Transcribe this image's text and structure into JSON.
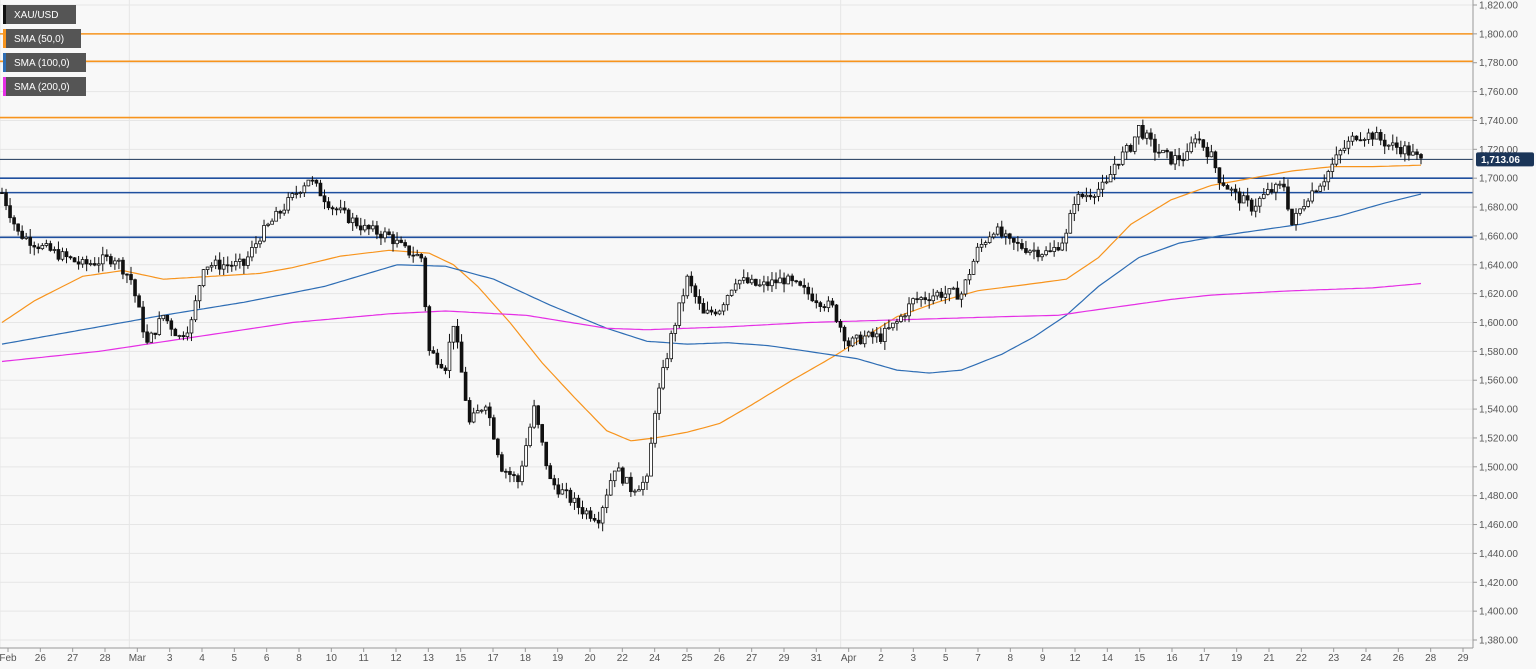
{
  "legend": [
    {
      "label": "XAU/USD",
      "color": "#111111"
    },
    {
      "label": "SMA (50,0)",
      "color": "#f7941d"
    },
    {
      "label": "SMA (100,0)",
      "color": "#2e6db4"
    },
    {
      "label": "SMA (200,0)",
      "color": "#e52fe5"
    }
  ],
  "price_tag": {
    "label": "1,713.06",
    "value": 1713.06,
    "color": "#1b3558"
  },
  "colors": {
    "background": "#f8f8f8",
    "grid": "#e6e6e6",
    "up_candle": "#ffffff",
    "down_candle": "#111111",
    "candle_outline": "#111111",
    "legend_box": "#555555",
    "resistance": "#f7941d",
    "support": "#1f4f9e",
    "current_price_line": "#1b3558"
  },
  "chart_data": {
    "type": "candlestick",
    "title": "",
    "xlabel": "",
    "ylabel": "",
    "ylim": [
      1370,
      1830
    ],
    "y_ticks": [
      {
        "value": 1820,
        "label": "1,820.00"
      },
      {
        "value": 1800,
        "label": "1,800.00"
      },
      {
        "value": 1780,
        "label": "1,780.00"
      },
      {
        "value": 1760,
        "label": "1,760.00"
      },
      {
        "value": 1740,
        "label": "1,740.00"
      },
      {
        "value": 1720,
        "label": "1,720.00"
      },
      {
        "value": 1700,
        "label": "1,700.00"
      },
      {
        "value": 1680,
        "label": "1,680.00"
      },
      {
        "value": 1660,
        "label": "1,660.00"
      },
      {
        "value": 1640,
        "label": "1,640.00"
      },
      {
        "value": 1620,
        "label": "1,620.00"
      },
      {
        "value": 1600,
        "label": "1,600.00"
      },
      {
        "value": 1580,
        "label": "1,580.00"
      },
      {
        "value": 1560,
        "label": "1,560.00"
      },
      {
        "value": 1540,
        "label": "1,540.00"
      },
      {
        "value": 1520,
        "label": "1,520.00"
      },
      {
        "value": 1500,
        "label": "1,500.00"
      },
      {
        "value": 1480,
        "label": "1,480.00"
      },
      {
        "value": 1460,
        "label": "1,460.00"
      },
      {
        "value": 1440,
        "label": "1,440.00"
      },
      {
        "value": 1420,
        "label": "1,420.00"
      },
      {
        "value": 1400,
        "label": "1,400.00"
      },
      {
        "value": 1380,
        "label": "1,380.00"
      }
    ],
    "x_ticks": [
      "Feb",
      "26",
      "27",
      "28",
      "Mar",
      "3",
      "4",
      "5",
      "6",
      "8",
      "10",
      "11",
      "12",
      "13",
      "15",
      "17",
      "18",
      "19",
      "20",
      "22",
      "24",
      "25",
      "26",
      "27",
      "29",
      "31",
      "Apr",
      "2",
      "3",
      "5",
      "7",
      "8",
      "9",
      "12",
      "14",
      "15",
      "16",
      "17",
      "19",
      "21",
      "22",
      "23",
      "24",
      "26",
      "28",
      "29"
    ],
    "horizontal_levels": [
      {
        "value": 1800,
        "kind": "resistance"
      },
      {
        "value": 1781,
        "kind": "resistance"
      },
      {
        "value": 1742,
        "kind": "resistance"
      },
      {
        "value": 1713,
        "kind": "current"
      },
      {
        "value": 1700,
        "kind": "support"
      },
      {
        "value": 1690,
        "kind": "support"
      },
      {
        "value": 1659,
        "kind": "support"
      }
    ],
    "price_anchors": [
      [
        0,
        1690
      ],
      [
        4,
        1662
      ],
      [
        10,
        1652
      ],
      [
        20,
        1640
      ],
      [
        28,
        1645
      ],
      [
        32,
        1630
      ],
      [
        36,
        1585
      ],
      [
        40,
        1605
      ],
      [
        44,
        1590
      ],
      [
        47,
        1600
      ],
      [
        50,
        1640
      ],
      [
        56,
        1640
      ],
      [
        60,
        1640
      ],
      [
        64,
        1660
      ],
      [
        70,
        1680
      ],
      [
        76,
        1700
      ],
      [
        82,
        1680
      ],
      [
        90,
        1665
      ],
      [
        96,
        1660
      ],
      [
        100,
        1650
      ],
      [
        104,
        1645
      ],
      [
        106,
        1580
      ],
      [
        110,
        1570
      ],
      [
        112,
        1600
      ],
      [
        116,
        1530
      ],
      [
        120,
        1545
      ],
      [
        124,
        1500
      ],
      [
        128,
        1490
      ],
      [
        132,
        1540
      ],
      [
        136,
        1490
      ],
      [
        140,
        1480
      ],
      [
        144,
        1470
      ],
      [
        148,
        1465
      ],
      [
        152,
        1500
      ],
      [
        156,
        1485
      ],
      [
        160,
        1490
      ],
      [
        162,
        1540
      ],
      [
        166,
        1590
      ],
      [
        170,
        1630
      ],
      [
        174,
        1605
      ],
      [
        178,
        1610
      ],
      [
        182,
        1630
      ],
      [
        188,
        1625
      ],
      [
        194,
        1630
      ],
      [
        200,
        1620
      ],
      [
        206,
        1610
      ],
      [
        210,
        1585
      ],
      [
        214,
        1590
      ],
      [
        218,
        1590
      ],
      [
        222,
        1600
      ],
      [
        226,
        1615
      ],
      [
        232,
        1620
      ],
      [
        238,
        1620
      ],
      [
        242,
        1650
      ],
      [
        246,
        1665
      ],
      [
        250,
        1655
      ],
      [
        256,
        1650
      ],
      [
        260,
        1648
      ],
      [
        264,
        1660
      ],
      [
        266,
        1685
      ],
      [
        270,
        1690
      ],
      [
        274,
        1695
      ],
      [
        276,
        1710
      ],
      [
        280,
        1722
      ],
      [
        282,
        1735
      ],
      [
        286,
        1720
      ],
      [
        290,
        1713
      ],
      [
        294,
        1715
      ],
      [
        296,
        1730
      ],
      [
        300,
        1715
      ],
      [
        302,
        1700
      ],
      [
        306,
        1688
      ],
      [
        310,
        1680
      ],
      [
        314,
        1690
      ],
      [
        318,
        1695
      ],
      [
        320,
        1668
      ],
      [
        324,
        1688
      ],
      [
        328,
        1700
      ],
      [
        332,
        1718
      ],
      [
        336,
        1730
      ],
      [
        340,
        1730
      ],
      [
        344,
        1723
      ],
      [
        348,
        1720
      ],
      [
        352,
        1712
      ]
    ],
    "sma": [
      {
        "name": "SMA (50,0)",
        "color": "#f7941d",
        "values": [
          [
            0,
            1600
          ],
          [
            8,
            1615
          ],
          [
            20,
            1632
          ],
          [
            30,
            1636
          ],
          [
            40,
            1630
          ],
          [
            52,
            1632
          ],
          [
            64,
            1634
          ],
          [
            72,
            1638
          ],
          [
            84,
            1646
          ],
          [
            96,
            1650
          ],
          [
            106,
            1648
          ],
          [
            112,
            1640
          ],
          [
            118,
            1625
          ],
          [
            126,
            1600
          ],
          [
            134,
            1572
          ],
          [
            142,
            1548
          ],
          [
            150,
            1525
          ],
          [
            156,
            1518
          ],
          [
            162,
            1520
          ],
          [
            170,
            1524
          ],
          [
            178,
            1530
          ],
          [
            186,
            1543
          ],
          [
            196,
            1560
          ],
          [
            206,
            1576
          ],
          [
            214,
            1590
          ],
          [
            222,
            1604
          ],
          [
            232,
            1614
          ],
          [
            242,
            1622
          ],
          [
            256,
            1627
          ],
          [
            264,
            1630
          ],
          [
            272,
            1645
          ],
          [
            280,
            1668
          ],
          [
            290,
            1685
          ],
          [
            300,
            1695
          ],
          [
            310,
            1700
          ],
          [
            320,
            1705
          ],
          [
            330,
            1708
          ],
          [
            340,
            1708
          ],
          [
            352,
            1709
          ]
        ]
      },
      {
        "name": "SMA (100,0)",
        "color": "#2e6db4",
        "values": [
          [
            0,
            1585
          ],
          [
            20,
            1595
          ],
          [
            40,
            1605
          ],
          [
            60,
            1614
          ],
          [
            80,
            1625
          ],
          [
            98,
            1640
          ],
          [
            110,
            1639
          ],
          [
            122,
            1630
          ],
          [
            136,
            1612
          ],
          [
            150,
            1596
          ],
          [
            160,
            1587
          ],
          [
            170,
            1585
          ],
          [
            180,
            1586
          ],
          [
            190,
            1584
          ],
          [
            200,
            1580
          ],
          [
            212,
            1575
          ],
          [
            222,
            1567
          ],
          [
            230,
            1565
          ],
          [
            238,
            1567
          ],
          [
            248,
            1578
          ],
          [
            256,
            1590
          ],
          [
            264,
            1605
          ],
          [
            272,
            1625
          ],
          [
            282,
            1645
          ],
          [
            292,
            1655
          ],
          [
            302,
            1660
          ],
          [
            312,
            1664
          ],
          [
            322,
            1668
          ],
          [
            332,
            1674
          ],
          [
            342,
            1682
          ],
          [
            352,
            1689
          ]
        ]
      },
      {
        "name": "SMA (200,0)",
        "color": "#e52fe5",
        "values": [
          [
            0,
            1573
          ],
          [
            24,
            1580
          ],
          [
            48,
            1590
          ],
          [
            72,
            1600
          ],
          [
            96,
            1606
          ],
          [
            110,
            1608
          ],
          [
            130,
            1605
          ],
          [
            150,
            1596
          ],
          [
            160,
            1595
          ],
          [
            180,
            1597
          ],
          [
            200,
            1600
          ],
          [
            224,
            1602
          ],
          [
            248,
            1604
          ],
          [
            262,
            1605
          ],
          [
            272,
            1609
          ],
          [
            290,
            1616
          ],
          [
            300,
            1619
          ],
          [
            320,
            1622
          ],
          [
            340,
            1624
          ],
          [
            352,
            1627
          ]
        ]
      }
    ]
  }
}
